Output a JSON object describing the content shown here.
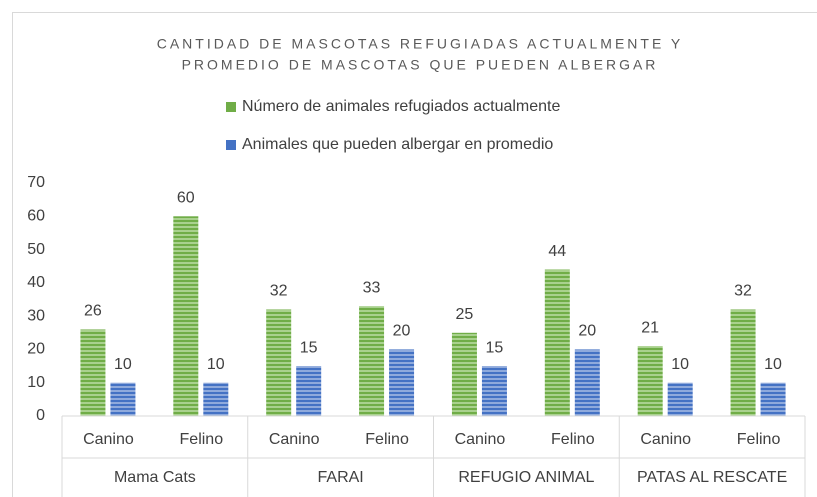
{
  "chart_data": {
    "type": "bar",
    "title": [
      "CANTIDAD DE MASCOTAS REFUGIADAS ACTUALMENTE Y",
      "PROMEDIO DE MASCOTAS QUE PUEDEN ALBERGAR"
    ],
    "categories": [
      "Canino",
      "Felino",
      "Canino",
      "Felino",
      "Canino",
      "Felino",
      "Canino",
      "Felino"
    ],
    "groups": [
      "Mama Cats",
      "FARAI",
      "REFUGIO ANIMAL",
      "PATAS AL RESCATE"
    ],
    "series": [
      {
        "name": "Número de animales refugiados actualmente",
        "color": "#70ad47",
        "values": [
          26,
          60,
          32,
          33,
          25,
          44,
          21,
          32
        ]
      },
      {
        "name": "Animales que pueden albergar en promedio",
        "color": "#4472c4",
        "values": [
          10,
          10,
          15,
          20,
          15,
          20,
          10,
          10
        ]
      }
    ],
    "ylim": [
      0,
      70
    ],
    "yticks": [
      0,
      10,
      20,
      30,
      40,
      50,
      60,
      70
    ],
    "grid": false,
    "legend": "top"
  }
}
